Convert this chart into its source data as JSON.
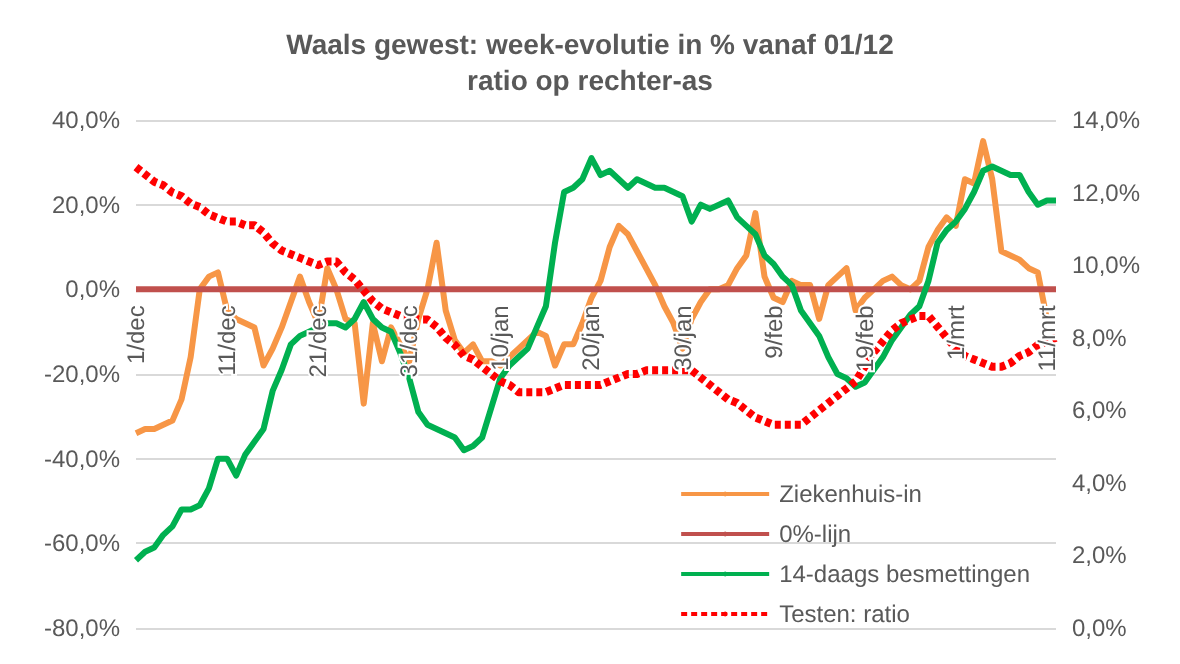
{
  "chart_data": {
    "type": "line",
    "title": "Waals gewest: week-evolutie in % vanaf 01/12",
    "subtitle": "ratio op rechter-as",
    "categories": [
      "1/dec",
      null,
      null,
      null,
      null,
      null,
      null,
      null,
      null,
      null,
      "11/dec",
      null,
      null,
      null,
      null,
      null,
      null,
      null,
      null,
      null,
      "21/dec",
      null,
      null,
      null,
      null,
      null,
      null,
      null,
      null,
      null,
      "31/dec",
      null,
      null,
      null,
      null,
      null,
      null,
      null,
      null,
      null,
      "10/jan",
      null,
      null,
      null,
      null,
      null,
      null,
      null,
      null,
      null,
      "20/jan",
      null,
      null,
      null,
      null,
      null,
      null,
      null,
      null,
      null,
      "30/jan",
      null,
      null,
      null,
      null,
      null,
      null,
      null,
      null,
      null,
      "9/feb",
      null,
      null,
      null,
      null,
      null,
      null,
      null,
      null,
      null,
      "19/feb",
      null,
      null,
      null,
      null,
      null,
      null,
      null,
      null,
      null,
      "1/mrt",
      null,
      null,
      null,
      null,
      null,
      null,
      null,
      null,
      null,
      "11/mrt",
      null
    ],
    "ylim": [
      -80,
      40
    ],
    "yticks": [
      {
        "value": -80,
        "label": "-80,0%"
      },
      {
        "value": -60,
        "label": "-60,0%"
      },
      {
        "value": -40,
        "label": "-40,0%"
      },
      {
        "value": -20,
        "label": "-20,0%"
      },
      {
        "value": 0,
        "label": "0,0%"
      },
      {
        "value": 20,
        "label": "20,0%"
      },
      {
        "value": 40,
        "label": "40,0%"
      }
    ],
    "y2lim": [
      0,
      14
    ],
    "y2ticks": [
      {
        "value": 0,
        "label": "0,0%"
      },
      {
        "value": 2,
        "label": "2,0%"
      },
      {
        "value": 4,
        "label": "4,0%"
      },
      {
        "value": 6,
        "label": "6,0%"
      },
      {
        "value": 8,
        "label": "8,0%"
      },
      {
        "value": 10,
        "label": "10,0%"
      },
      {
        "value": 12,
        "label": "12,0%"
      },
      {
        "value": 14,
        "label": "14,0%"
      }
    ],
    "grid": "y",
    "legend": "bottom right",
    "marker": "none",
    "series": [
      {
        "name": "Ziekenhuis-in",
        "color": "#f79646",
        "line_style": "solid",
        "values": [
          -34,
          -33,
          -33,
          -32,
          -31,
          -26,
          -16,
          0,
          3,
          4,
          -5,
          -7,
          -8,
          -9,
          -18,
          -14,
          -9,
          -3,
          3,
          -3,
          -8,
          5,
          0,
          -7,
          -8,
          -27,
          -8,
          -17,
          -9,
          -13,
          -17,
          -7,
          0,
          11,
          -5,
          -12,
          -15,
          -13,
          -17,
          -17,
          -18,
          -16,
          -14,
          -12,
          -10,
          -11,
          -18,
          -13,
          -13,
          -8,
          -2,
          2,
          10,
          15,
          13,
          9,
          5,
          1,
          -4,
          -8,
          -14,
          -7,
          -3,
          0,
          0,
          1,
          5,
          8,
          18,
          3,
          -2,
          -3,
          2,
          1,
          1,
          -7,
          1,
          3,
          5,
          -5,
          -2,
          0,
          2,
          3,
          1,
          0,
          2,
          10,
          14,
          17,
          15,
          26,
          25,
          35,
          26,
          9,
          8,
          7,
          5,
          4,
          -7,
          null
        ]
      },
      {
        "name": "0%-lijn",
        "color": "#c0504d",
        "line_style": "solid",
        "values": [
          0,
          0,
          0,
          0,
          0,
          0,
          0,
          0,
          0,
          0,
          0,
          0,
          0,
          0,
          0,
          0,
          0,
          0,
          0,
          0,
          0,
          0,
          0,
          0,
          0,
          0,
          0,
          0,
          0,
          0,
          0,
          0,
          0,
          0,
          0,
          0,
          0,
          0,
          0,
          0,
          0,
          0,
          0,
          0,
          0,
          0,
          0,
          0,
          0,
          0,
          0,
          0,
          0,
          0,
          0,
          0,
          0,
          0,
          0,
          0,
          0,
          0,
          0,
          0,
          0,
          0,
          0,
          0,
          0,
          0,
          0,
          0,
          0,
          0,
          0,
          0,
          0,
          0,
          0,
          0,
          0,
          0,
          0,
          0,
          0,
          0,
          0,
          0,
          0,
          0,
          0,
          0,
          0,
          0,
          0,
          0,
          0,
          0,
          0,
          0,
          0,
          0
        ]
      },
      {
        "name": "14-daags besmettingen",
        "color": "#00b050",
        "line_style": "solid",
        "values": [
          -64,
          -62,
          -61,
          -58,
          -56,
          -52,
          -52,
          -51,
          -47,
          -40,
          -40,
          -44,
          -39,
          -36,
          -33,
          -24,
          -19,
          -13,
          -11,
          -10,
          -9,
          -8,
          -8,
          -9,
          -7,
          -3,
          -7,
          -9,
          -10,
          -15,
          -21,
          -29,
          -32,
          -33,
          -34,
          -35,
          -38,
          -37,
          -35,
          -28,
          -21,
          -18,
          -16,
          -14,
          -9,
          -4,
          11,
          23,
          24,
          26,
          31,
          27,
          28,
          26,
          24,
          26,
          25,
          24,
          24,
          23,
          22,
          16,
          20,
          19,
          20,
          21,
          17,
          15,
          13,
          8,
          6,
          3,
          1,
          -5,
          -8,
          -11,
          -16,
          -20,
          -21,
          -23,
          -22,
          -19,
          -16,
          -12,
          -9,
          -6,
          -4,
          2,
          11,
          14,
          16,
          19,
          23,
          28,
          29,
          28,
          27,
          27,
          23,
          20,
          21,
          21
        ]
      },
      {
        "name": "Testen: ratio",
        "color": "#ff0000",
        "line_style": "dashed",
        "axis": "y2",
        "values": [
          12.7,
          12.5,
          12.3,
          12.2,
          12.0,
          11.9,
          11.7,
          11.6,
          11.4,
          11.3,
          11.2,
          11.2,
          11.1,
          11.1,
          10.9,
          10.6,
          10.4,
          10.3,
          10.2,
          10.1,
          10.0,
          10.1,
          10.1,
          9.8,
          9.6,
          9.3,
          9.0,
          8.8,
          8.7,
          8.6,
          8.6,
          8.5,
          8.5,
          8.3,
          8.0,
          7.8,
          7.5,
          7.4,
          7.2,
          7.0,
          6.8,
          6.7,
          6.5,
          6.5,
          6.5,
          6.5,
          6.6,
          6.7,
          6.7,
          6.7,
          6.7,
          6.7,
          6.8,
          6.9,
          7.0,
          7.0,
          7.1,
          7.1,
          7.1,
          7.1,
          7.1,
          7.1,
          6.9,
          6.7,
          6.5,
          6.3,
          6.2,
          6.0,
          5.8,
          5.7,
          5.6,
          5.6,
          5.6,
          5.6,
          5.8,
          6.0,
          6.2,
          6.4,
          6.6,
          6.8,
          7.2,
          7.6,
          7.9,
          8.2,
          8.4,
          8.5,
          8.6,
          8.6,
          8.3,
          8.0,
          7.7,
          7.5,
          7.4,
          7.3,
          7.2,
          7.2,
          7.3,
          7.5,
          7.6,
          7.8,
          7.9,
          8.0
        ]
      }
    ]
  }
}
